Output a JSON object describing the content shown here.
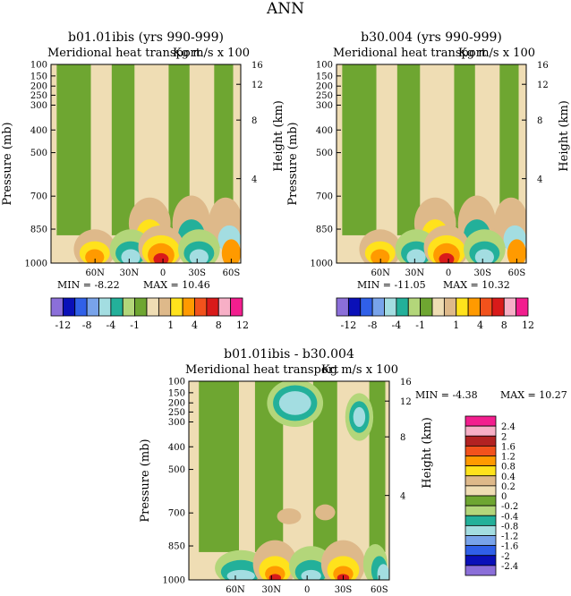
{
  "figure_title": "ANN",
  "colors": {
    "green": "#6EA631",
    "light_green": "#B3D67A",
    "tan": "#EFDDB4",
    "tan_dark": "#DEB98A",
    "yellow": "#FFE21C",
    "orange": "#FF9A00",
    "red_orange": "#F2521C",
    "red": "#D91A1A",
    "teal": "#23B09A",
    "light_blue": "#A3DDE1"
  },
  "chart_data": [
    {
      "type": "heatmap",
      "title": "b01.01ibis (yrs 990-999)",
      "subtitle_left": "Meridional heat transport",
      "subtitle_right": "Kg m/s x 100",
      "ylabel": "Pressure (mb)",
      "ylabel_right": "Height (km)",
      "y_ticks": [
        "100",
        "150",
        "200",
        "250",
        "300",
        "400",
        "500",
        "700",
        "850",
        "1000"
      ],
      "y_right_ticks": [
        "16",
        "12",
        "8",
        "4"
      ],
      "x_ticks": [
        "60N",
        "30N",
        "0",
        "30S",
        "60S"
      ],
      "min_label": "MIN =",
      "min": "-8.22",
      "max_label": "MAX =",
      "max": "10.46",
      "colorbar": {
        "orientation": "horizontal",
        "colors": [
          "#8B6FD9",
          "#0A10B8",
          "#3060E8",
          "#78A3EA",
          "#A3DDE1",
          "#23B09A",
          "#B3D67A",
          "#6EA631",
          "#EFDDB4",
          "#DEB98A",
          "#FFE21C",
          "#FF9A00",
          "#F2521C",
          "#D91A1A",
          "#F7AFC6",
          "#F21E8E"
        ],
        "labels": [
          "-12",
          "-8",
          "-4",
          "-1",
          "1",
          "4",
          "8",
          "12"
        ]
      }
    },
    {
      "type": "heatmap",
      "title": "b30.004 (yrs 990-999)",
      "subtitle_left": "Meridional heat transport",
      "subtitle_right": "Kg m/s x 100",
      "ylabel": "Pressure (mb)",
      "ylabel_right": "Height (km)",
      "y_ticks": [
        "100",
        "150",
        "200",
        "250",
        "300",
        "400",
        "500",
        "700",
        "850",
        "1000"
      ],
      "y_right_ticks": [
        "16",
        "12",
        "8",
        "4"
      ],
      "x_ticks": [
        "60N",
        "30N",
        "0",
        "30S",
        "60S"
      ],
      "min_label": "MIN =",
      "min": "-11.05",
      "max_label": "MAX =",
      "max": "10.32",
      "colorbar": {
        "orientation": "horizontal",
        "colors": [
          "#8B6FD9",
          "#0A10B8",
          "#3060E8",
          "#78A3EA",
          "#A3DDE1",
          "#23B09A",
          "#B3D67A",
          "#6EA631",
          "#EFDDB4",
          "#DEB98A",
          "#FFE21C",
          "#FF9A00",
          "#F2521C",
          "#D91A1A",
          "#F7AFC6",
          "#F21E8E"
        ],
        "labels": [
          "-12",
          "-8",
          "-4",
          "-1",
          "1",
          "4",
          "8",
          "12"
        ]
      }
    },
    {
      "type": "heatmap",
      "title": "b01.01ibis - b30.004",
      "subtitle_left": "Meridional heat transport",
      "subtitle_right": "Kg m/s x 100",
      "ylabel": "Pressure (mb)",
      "ylabel_right": "Height (km)",
      "y_ticks": [
        "100",
        "150",
        "200",
        "250",
        "300",
        "400",
        "500",
        "700",
        "850",
        "1000"
      ],
      "y_right_ticks": [
        "16",
        "12",
        "8",
        "4"
      ],
      "x_ticks": [
        "60N",
        "30N",
        "0",
        "30S",
        "60S"
      ],
      "min_label": "MIN =",
      "min": "-4.38",
      "max_label": "MAX =",
      "max": "10.27",
      "colorbar": {
        "orientation": "vertical",
        "colors": [
          "#F21E8E",
          "#F7AFC6",
          "#B22222",
          "#F2521C",
          "#FF9A00",
          "#FFE21C",
          "#DEB98A",
          "#EFDDB4",
          "#6EA631",
          "#B3D67A",
          "#23B09A",
          "#A3DDE1",
          "#78A3EA",
          "#3060E8",
          "#0A10B8",
          "#8B6FD9"
        ],
        "labels": [
          "2.4",
          "2",
          "1.6",
          "1.2",
          "0.8",
          "0.4",
          "0.2",
          "0",
          "-0.2",
          "-0.4",
          "-0.8",
          "-1.2",
          "-1.6",
          "-2",
          "-2.4"
        ]
      }
    }
  ]
}
